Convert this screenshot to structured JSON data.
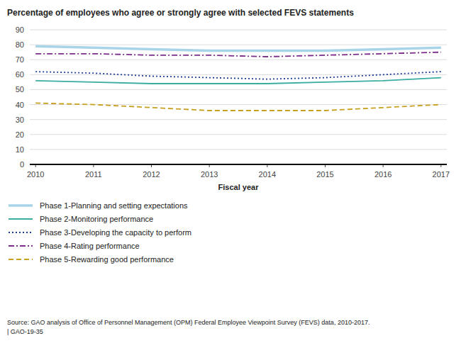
{
  "chart_data": {
    "type": "line",
    "title": "Percentage of employees who agree or strongly agree with selected FEVS statements",
    "x_label": "Fiscal year",
    "x": [
      2010,
      2011,
      2012,
      2013,
      2014,
      2015,
      2016,
      2017
    ],
    "xlim": [
      2009.9,
      2017.1
    ],
    "xticks": [
      2010,
      2011,
      2012,
      2013,
      2014,
      2015,
      2016,
      2017
    ],
    "ylim": [
      0,
      90
    ],
    "yticks": [
      0,
      10,
      20,
      30,
      40,
      50,
      60,
      70,
      80,
      90
    ],
    "grid": true,
    "legend": "bottom",
    "series": [
      {
        "name": "Phase 1-Planning and setting expectations",
        "color": "#a8d4e8",
        "line_style": "solid",
        "values": [
          79,
          78,
          77,
          76,
          76,
          76,
          77,
          78
        ]
      },
      {
        "name": "Phase 2-Monitoring performance",
        "color": "#3aada0",
        "line_style": "solid",
        "values": [
          56,
          55,
          54,
          54,
          54,
          55,
          56,
          58
        ]
      },
      {
        "name": "Phase 3-Developing the capacity to perform",
        "color": "#1f3d99",
        "line_style": "dotted",
        "values": [
          62,
          61,
          59,
          58,
          57,
          58,
          60,
          62
        ]
      },
      {
        "name": "Phase 4-Rating performance",
        "color": "#7b2d8b",
        "line_style": "dashdot",
        "values": [
          74,
          74,
          73,
          73,
          72,
          73,
          74,
          75
        ]
      },
      {
        "name": "Phase 5-Rewarding good performance",
        "color": "#c8a020",
        "line_style": "dashed",
        "values": [
          41,
          40,
          38,
          36,
          36,
          36,
          38,
          40
        ]
      }
    ],
    "source": "Source: GAO analysis of Office of Personnel Management (OPM) Federal Employee Viewpoint Survey (FEVS) data, 2010-2017.\n| GAO-19-35"
  }
}
